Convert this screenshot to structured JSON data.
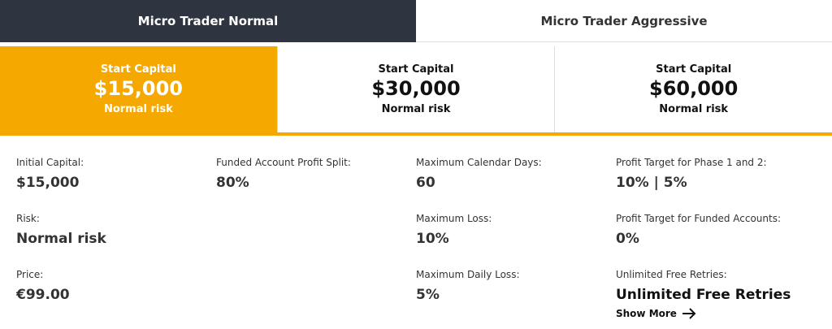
{
  "tabs": [
    {
      "label": "Micro Trader Normal",
      "active": true
    },
    {
      "label": "Micro Trader Aggressive",
      "active": false
    }
  ],
  "plans": [
    {
      "heading": "Start Capital",
      "amount": "$15,000",
      "risk": "Normal risk",
      "selected": true
    },
    {
      "heading": "Start Capital",
      "amount": "$30,000",
      "risk": "Normal risk",
      "selected": false
    },
    {
      "heading": "Start Capital",
      "amount": "$60,000",
      "risk": "Normal risk",
      "selected": false
    }
  ],
  "details": {
    "columns": [
      [
        {
          "label": "Initial Capital:",
          "value": "$15,000"
        },
        {
          "label": "Risk:",
          "value": "Normal risk"
        },
        {
          "label": "Price:",
          "value": "€99.00"
        }
      ],
      [
        {
          "label": "Funded Account Profit Split:",
          "value": "80%"
        }
      ],
      [
        {
          "label": "Maximum Calendar Days:",
          "value": "60"
        },
        {
          "label": "Maximum Loss:",
          "value": "10%"
        },
        {
          "label": "Maximum Daily Loss:",
          "value": "5%"
        }
      ],
      [
        {
          "label": "Profit Target for Phase 1 and 2:",
          "value": "10% | 5%"
        },
        {
          "label": "Profit Target for Funded Accounts:",
          "value": "0%"
        },
        {
          "label": "Unlimited Free Retries:",
          "value": "Unlimited Free Retries"
        }
      ]
    ]
  },
  "show_more": "Show More"
}
